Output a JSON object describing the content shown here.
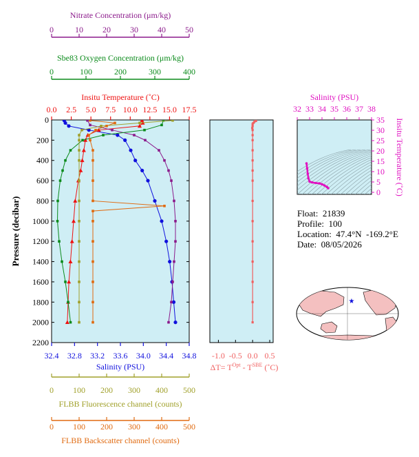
{
  "colors": {
    "nitrate": "#8b1a8b",
    "oxygen": "#0a8a1a",
    "temperature": "#ee1111",
    "salinity": "#1010dd",
    "fluorescence": "#a0a02a",
    "backscatter": "#e06a10",
    "delta_t": "#f06060",
    "ts_axis": "#e010c0",
    "panel_bg": "#cfeef5",
    "land": "#f4c0c0"
  },
  "info": {
    "float_label": "Float:",
    "float_value": "21839",
    "profile_label": "Profile:",
    "profile_value": "100",
    "location_label": "Location:",
    "location_value": "47.4°N  -169.2°E",
    "date_label": "Date:",
    "date_value": "08/05/2026"
  },
  "chart_data": [
    {
      "type": "line",
      "panel": "profiles",
      "ylabel": "Pressure (decibar)",
      "ylim": [
        2200,
        0
      ],
      "yticks": [
        "0",
        "200",
        "400",
        "600",
        "800",
        "1000",
        "1200",
        "1400",
        "1600",
        "1800",
        "2000",
        "2200"
      ],
      "axes": {
        "nitrate": {
          "label": "Nitrate Concentration (μm/kg)",
          "lim": [
            0,
            50
          ],
          "ticks": [
            "0",
            "10",
            "20",
            "30",
            "40",
            "50"
          ]
        },
        "oxygen": {
          "label": "Sbe83 Oxygen Concentration (μm/kg)",
          "lim": [
            0,
            400
          ],
          "ticks": [
            "0",
            "100",
            "200",
            "300",
            "400"
          ]
        },
        "temperature": {
          "label": "Insitu Temperature (˚C)",
          "lim": [
            0,
            17.5
          ],
          "ticks": [
            "0.0",
            "2.5",
            "5.0",
            "7.5",
            "10.0",
            "12.5",
            "15.0",
            "17.5"
          ]
        },
        "salinity": {
          "label": "Salinity (PSU)",
          "lim": [
            32.4,
            34.8
          ],
          "ticks": [
            "32.4",
            "32.8",
            "33.2",
            "33.6",
            "34.0",
            "34.4",
            "34.8"
          ]
        },
        "fluorescence": {
          "label": "FLBB Fluorescence channel (counts)",
          "lim": [
            0,
            500
          ],
          "ticks": [
            "0",
            "100",
            "200",
            "300",
            "400",
            "500"
          ]
        },
        "backscatter": {
          "label": "FLBB Backscatter channel (counts)",
          "lim": [
            0,
            500
          ],
          "ticks": [
            "0",
            "100",
            "200",
            "300",
            "400",
            "500"
          ]
        }
      },
      "series": [
        {
          "name": "Salinity (PSU)",
          "axis": "salinity",
          "marker": "circle",
          "p": [
            5,
            30,
            60,
            100,
            150,
            200,
            300,
            400,
            500,
            600,
            800,
            1000,
            1200,
            1400,
            1600,
            1800,
            2000
          ],
          "v": [
            32.62,
            32.64,
            32.7,
            33.05,
            33.55,
            33.68,
            33.78,
            33.86,
            33.98,
            34.08,
            34.2,
            34.32,
            34.4,
            34.46,
            34.5,
            34.53,
            34.56
          ]
        },
        {
          "name": "Insitu Temperature (˚C)",
          "axis": "temperature",
          "marker": "triangle",
          "p": [
            5,
            30,
            60,
            100,
            150,
            200,
            300,
            400,
            500,
            600,
            800,
            1000,
            1200,
            1400,
            1600,
            1800,
            2000
          ],
          "v": [
            11.5,
            11.6,
            11.2,
            6.0,
            4.6,
            4.3,
            4.1,
            3.9,
            3.7,
            3.4,
            3.0,
            2.8,
            2.6,
            2.4,
            2.2,
            2.1,
            2.0
          ]
        },
        {
          "name": "Nitrate Concentration (μm/kg)",
          "axis": "nitrate",
          "marker": "square",
          "p": [
            5,
            50,
            100,
            150,
            200,
            300,
            400,
            500,
            600,
            800,
            1000,
            1200,
            1400,
            1600,
            1800,
            2000
          ],
          "v": [
            13.0,
            14.0,
            22.0,
            30.0,
            34.0,
            39.0,
            41.0,
            42.5,
            43.5,
            44.5,
            45.0,
            45.0,
            44.5,
            44.0,
            43.5,
            42.5
          ]
        },
        {
          "name": "Sbe83 Oxygen Concentration (μm/kg)",
          "axis": "oxygen",
          "marker": "square",
          "p": [
            5,
            50,
            100,
            150,
            200,
            300,
            400,
            500,
            600,
            800,
            1000,
            1200,
            1400,
            1600,
            1800,
            2000
          ],
          "v": [
            325,
            320,
            270,
            150,
            90,
            55,
            40,
            32,
            25,
            18,
            17,
            22,
            30,
            40,
            48,
            55
          ]
        },
        {
          "name": "FLBB Fluorescence channel (counts)",
          "axis": "fluorescence",
          "marker": "square",
          "p": [
            5,
            30,
            60,
            100,
            150,
            200,
            300,
            400,
            600,
            800,
            1000,
            1200,
            1400,
            1600,
            1800,
            2000
          ],
          "v": [
            440,
            320,
            180,
            110,
            100,
            100,
            100,
            100,
            100,
            100,
            100,
            100,
            100,
            100,
            100,
            100
          ]
        },
        {
          "name": "FLBB Backscatter channel (counts)",
          "axis": "backscatter",
          "marker": "square",
          "p": [
            5,
            30,
            60,
            100,
            150,
            200,
            300,
            400,
            600,
            800,
            850,
            900,
            1000,
            1200,
            1400,
            1600,
            1800,
            2000
          ],
          "v": [
            140,
            230,
            200,
            160,
            135,
            140,
            150,
            150,
            150,
            150,
            410,
            150,
            150,
            150,
            150,
            150,
            150,
            150
          ]
        }
      ]
    },
    {
      "type": "line",
      "panel": "delta-t",
      "xlabel": "ΔT= T",
      "xlabel_sup1": "Opt",
      "xlabel_mid": " - T",
      "xlabel_sup2": "SBE",
      "xlabel_unit": " (˚C)",
      "xlim": [
        -1.25,
        0.6
      ],
      "xticks": [
        "-1.0",
        "-0.5",
        "0.0",
        "0.5"
      ],
      "ylim": [
        2200,
        0
      ],
      "series": [
        {
          "p": [
            0,
            10,
            20,
            30,
            40,
            60,
            80,
            100,
            150,
            200,
            300,
            400,
            500,
            600,
            800,
            1000,
            1200,
            1400,
            1600,
            1800,
            2000
          ],
          "v": [
            0.08,
            0.1,
            0.05,
            0.02,
            0.0,
            0.0,
            -0.01,
            0.0,
            0.0,
            0.0,
            0.0,
            0.0,
            0.0,
            0.0,
            0.0,
            0.0,
            0.0,
            0.0,
            0.0,
            0.0,
            0.0
          ]
        }
      ]
    },
    {
      "type": "scatter",
      "panel": "t-s",
      "title": "Salinity (PSU)",
      "ylabel": "Insitu Temperature (˚C)",
      "xlim": [
        32,
        38
      ],
      "xticks": [
        "32",
        "33",
        "34",
        "35",
        "36",
        "37",
        "38"
      ],
      "ylim": [
        -1,
        35
      ],
      "yticks": [
        "0",
        "5",
        "10",
        "15",
        "20",
        "25",
        "30",
        "35"
      ],
      "salinity": [
        32.75,
        32.8,
        32.85,
        32.9,
        33.0,
        33.2,
        33.5,
        33.8,
        34.0,
        34.2,
        34.4,
        34.5
      ],
      "temperature": [
        14.0,
        11.6,
        9.0,
        6.8,
        5.2,
        4.8,
        4.5,
        4.3,
        3.9,
        3.3,
        2.6,
        2.0
      ]
    },
    {
      "type": "map",
      "panel": "location-map",
      "marker": {
        "lat": 47.4,
        "lon": -169.2,
        "symbol": "star"
      }
    }
  ]
}
